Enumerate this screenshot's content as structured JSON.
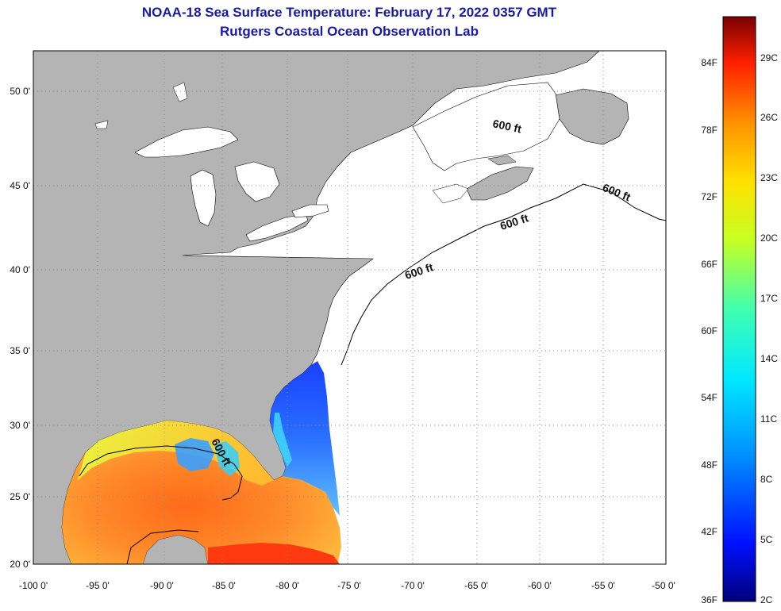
{
  "title": "NOAA-18 Sea Surface Temperature:  February 17, 2022 0357 GMT",
  "subtitle": "Rutgers Coastal Ocean Observation Lab",
  "lon_labels": [
    "-100 0'",
    "-95 0'",
    "-90 0'",
    "-85 0'",
    "-80 0'",
    "-75 0'",
    "-70 0'",
    "-65 0'",
    "-60 0'",
    "-55 0'",
    "-50 0'"
  ],
  "lat_labels": [
    "50 0'",
    "45 0'",
    "40 0'",
    "35 0'",
    "30 0'",
    "25 0'",
    "20 0'"
  ],
  "contour_label": "600 ft",
  "colorbar": {
    "fahrenheit": [
      "84F",
      "78F",
      "72F",
      "66F",
      "60F",
      "54F",
      "48F",
      "42F",
      "36F"
    ],
    "celsius": [
      "29C",
      "26C",
      "23C",
      "20C",
      "17C",
      "14C",
      "11C",
      "8C",
      "5C",
      "2C"
    ]
  },
  "colors": {
    "land": "#b4b4b4",
    "ocean_nodata": "#ffffff",
    "title": "#1a1aa6",
    "grid": "#888888"
  }
}
